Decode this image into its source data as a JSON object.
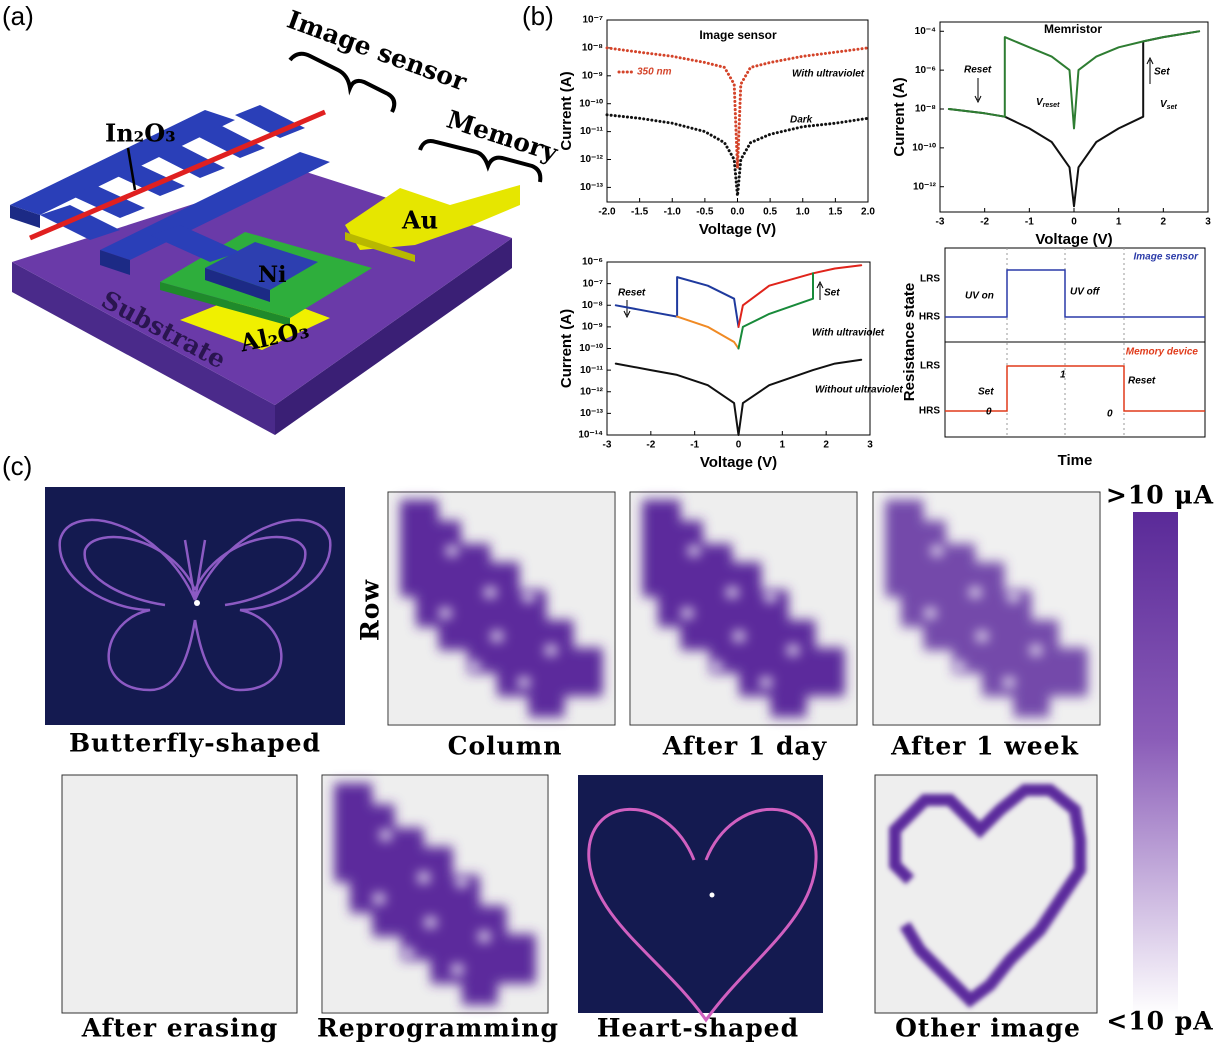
{
  "panel_labels": [
    "(a)",
    "(b)",
    "(c)"
  ],
  "schematic": {
    "in2o3": "In₂O₃",
    "image_sensor": "Image sensor",
    "memory": "Memory",
    "au": "Au",
    "ni": "Ni",
    "al2o3": "Al₂O₃",
    "substrate": "Substrate"
  },
  "chart_data": [
    {
      "type": "line",
      "title": "Image sensor",
      "xlabel": "Voltage (V)",
      "ylabel": "Current (A)",
      "log_y": true,
      "legend": "upper left",
      "x": [
        -2,
        -1.5,
        -1,
        -0.5,
        -0.2,
        -0.05,
        0,
        0.05,
        0.2,
        0.5,
        1,
        1.5,
        2
      ],
      "series": [
        {
          "name": "350 nm",
          "color": "#d4442a",
          "style": "dotted",
          "values": [
            1e-08,
            7e-09,
            5e-09,
            3e-09,
            2e-09,
            5e-10,
            5e-13,
            5e-10,
            2e-09,
            3e-09,
            5e-09,
            7e-09,
            1e-08
          ]
        },
        {
          "color": "#111111",
          "style": "dotted",
          "values": [
            4e-11,
            3e-11,
            2e-11,
            1e-11,
            4e-12,
            1e-12,
            5e-14,
            1e-12,
            4e-12,
            8e-12,
            1.5e-11,
            2e-11,
            3e-11
          ]
        }
      ],
      "annotations": [
        "With ultraviolet",
        "Dark"
      ],
      "xlim": [
        -2,
        2
      ],
      "ylim": [
        3e-14,
        1e-07
      ],
      "xticks": [
        {
          "value": -2,
          "label": "-2.0"
        },
        {
          "value": -1.5,
          "label": "-1.5"
        },
        {
          "value": -1,
          "label": "-1.0"
        },
        {
          "value": -0.5,
          "label": "-0.5"
        },
        {
          "value": 0,
          "label": "0.0"
        },
        {
          "value": 0.5,
          "label": "0.5"
        },
        {
          "value": 1,
          "label": "1.0"
        },
        {
          "value": 1.5,
          "label": "1.5"
        },
        {
          "value": 2,
          "label": "2.0"
        }
      ],
      "yticks": [
        {
          "value": 1e-13,
          "label": "10⁻¹³"
        },
        {
          "value": 1e-12,
          "label": "10⁻¹²"
        },
        {
          "value": 1e-11,
          "label": "10⁻¹¹"
        },
        {
          "value": 1e-10,
          "label": "10⁻¹⁰"
        },
        {
          "value": 1e-09,
          "label": "10⁻⁹"
        },
        {
          "value": 1e-08,
          "label": "10⁻⁸"
        },
        {
          "value": 1e-07,
          "label": "10⁻⁷"
        }
      ]
    },
    {
      "type": "line",
      "title": "Memristor",
      "xlabel": "Voltage (V)",
      "ylabel": "Current (A)",
      "log_y": true,
      "x": [
        -2.8,
        -2,
        -1.55,
        -1.55,
        -1,
        -0.5,
        -0.1,
        0,
        0.1,
        0.5,
        1,
        1.55,
        1.55,
        2,
        2.8
      ],
      "series": [
        {
          "color": "#111111",
          "style": "solid",
          "values": [
            1e-08,
            6e-09,
            4e-09,
            4e-09,
            1e-09,
            2e-10,
            1e-11,
            1e-13,
            1e-11,
            2e-10,
            1e-09,
            4e-09,
            3e-05,
            5e-05,
            0.0001
          ]
        },
        {
          "color": "#2e7d32",
          "style": "solid",
          "values": [
            1e-08,
            6e-09,
            4e-09,
            5e-05,
            1.5e-05,
            5e-06,
            1e-06,
            1e-09,
            1e-06,
            5e-06,
            1.5e-05,
            3e-05,
            3e-05,
            5e-05,
            0.0001
          ]
        }
      ],
      "annotations": [
        "Reset",
        "Set",
        {
          "text": "V",
          "sub": "reset"
        },
        {
          "text": "V",
          "sub": "set"
        }
      ],
      "xlim": [
        -3,
        3
      ],
      "ylim": [
        5e-14,
        0.0003
      ],
      "xticks": [
        -3,
        -2,
        -1,
        0,
        1,
        2,
        3
      ],
      "yticks": [
        {
          "value": 1e-12,
          "label": "10⁻¹²"
        },
        {
          "value": 1e-10,
          "label": "10⁻¹⁰"
        },
        {
          "value": 1e-08,
          "label": "10⁻⁸"
        },
        {
          "value": 1e-06,
          "label": "10⁻⁶"
        },
        {
          "value": 0.0001,
          "label": "10⁻⁴"
        }
      ]
    },
    {
      "type": "line",
      "xlabel": "Voltage (V)",
      "ylabel": "Current (A)",
      "log_y": true,
      "x": [
        -2.8,
        -2,
        -1.4,
        -1.4,
        -0.7,
        -0.1,
        0,
        0.1,
        0.7,
        1.7,
        1.7,
        2.2,
        2.8
      ],
      "series": [
        {
          "color": "#1f3a9e",
          "style": "solid",
          "values": [
            1e-08,
            5e-09,
            3e-09,
            2e-07,
            8e-08,
            2e-08,
            1e-09,
            null,
            null,
            null,
            null,
            null,
            null
          ]
        },
        {
          "color": "#f08a24",
          "style": "solid",
          "values": [
            null,
            null,
            3e-09,
            3e-09,
            1e-09,
            2e-10,
            1e-10,
            null,
            null,
            null,
            null,
            null,
            null
          ]
        },
        {
          "color": "#e0241b",
          "style": "solid",
          "values": [
            null,
            null,
            null,
            null,
            null,
            null,
            1e-09,
            1e-08,
            8e-08,
            3e-07,
            3e-07,
            5e-07,
            7e-07
          ]
        },
        {
          "color": "#188a3a",
          "style": "solid",
          "values": [
            null,
            null,
            null,
            null,
            null,
            null,
            1e-10,
            1e-09,
            4e-09,
            2e-08,
            3e-07,
            null,
            null
          ]
        },
        {
          "color": "#111111",
          "style": "solid",
          "values": [
            2e-11,
            1e-11,
            6e-12,
            6e-12,
            2e-12,
            3e-13,
            1e-14,
            3e-13,
            2e-12,
            1e-11,
            1e-11,
            2e-11,
            3e-11
          ]
        }
      ],
      "annotations": [
        "Reset",
        "Set",
        "With ultraviolet",
        "Without ultraviolet"
      ],
      "xlim": [
        -3,
        3
      ],
      "ylim": [
        1e-14,
        1e-06
      ],
      "xticks": [
        -3,
        -2,
        -1,
        0,
        1,
        2,
        3
      ],
      "yticks": [
        {
          "value": 1e-14,
          "label": "10⁻¹⁴"
        },
        {
          "value": 1e-13,
          "label": "10⁻¹³"
        },
        {
          "value": 1e-12,
          "label": "10⁻¹²"
        },
        {
          "value": 1e-11,
          "label": "10⁻¹¹"
        },
        {
          "value": 1e-10,
          "label": "10⁻¹⁰"
        },
        {
          "value": 1e-09,
          "label": "10⁻⁹"
        },
        {
          "value": 1e-08,
          "label": "10⁻⁸"
        },
        {
          "value": 1e-07,
          "label": "10⁻⁷"
        },
        {
          "value": 1e-06,
          "label": "10⁻⁶"
        }
      ]
    }
  ],
  "timing": {
    "ylabel": "Resistance state",
    "xlabel": "Time",
    "lrs": "LRS",
    "hrs": "HRS",
    "top_title": "Image sensor",
    "uv_on": "UV on",
    "uv_off": "UV off",
    "bottom_title": "Memory device",
    "set": "Set",
    "reset": "Reset",
    "state_0a": "0",
    "state_1": "1",
    "state_0b": "0"
  },
  "gallery": {
    "row_label": "Row",
    "captions": [
      "Butterfly-shaped",
      "Column",
      "After 1 day",
      "After 1 week",
      "After erasing",
      "Reprogramming",
      "Heart-shaped",
      "Other image"
    ],
    "colorbar_max": ">10 μA",
    "colorbar_min": "<10 pA"
  }
}
